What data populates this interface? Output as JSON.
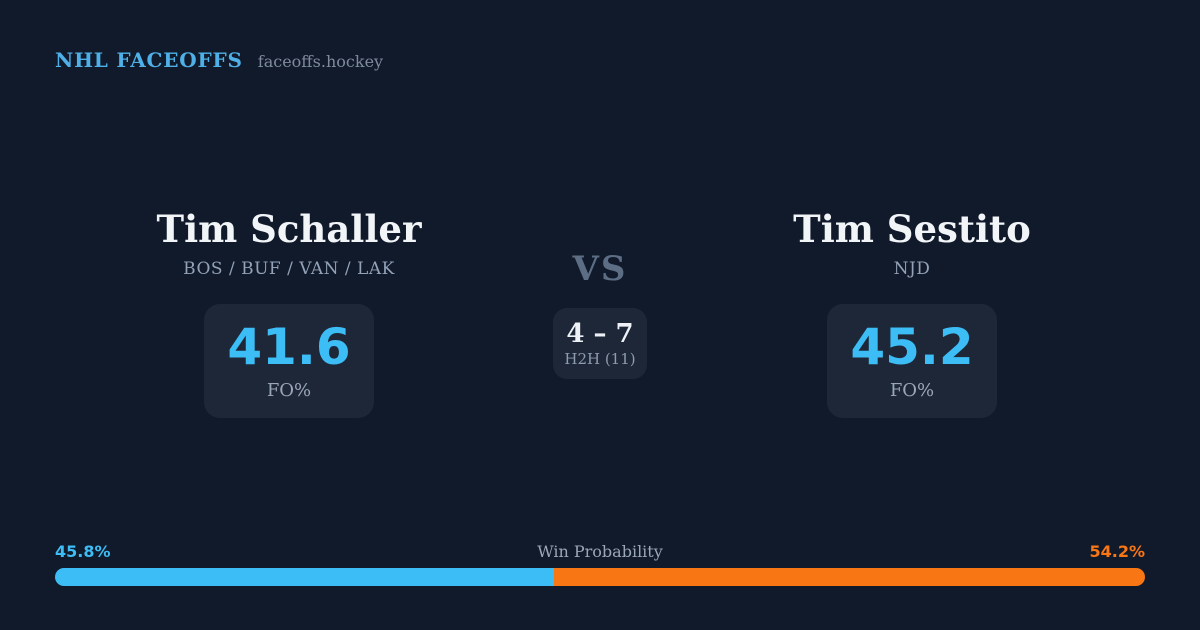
{
  "header": {
    "brand": "NHL FACEOFFS",
    "site": "faceoffs.hockey"
  },
  "matchup": {
    "vs_label": "VS",
    "h2h": {
      "score": "4 – 7",
      "label": "H2H (11)"
    },
    "left": {
      "name": "Tim Schaller",
      "teams": "BOS / BUF / VAN / LAK",
      "fo_value": "41.6",
      "fo_label": "FO%"
    },
    "right": {
      "name": "Tim Sestito",
      "teams": "NJD",
      "fo_value": "45.2",
      "fo_label": "FO%"
    }
  },
  "win_probability": {
    "title": "Win Probability",
    "left_pct_label": "45.8%",
    "right_pct_label": "54.2%",
    "left_value": 45.8,
    "right_value": 54.2,
    "left_color": "#3dbdf5",
    "right_color": "#f97614"
  },
  "colors": {
    "background": "#111a2b",
    "card": "#1d2737",
    "accent_blue": "#3dbdf5",
    "accent_orange": "#f97614",
    "brand_blue": "#4fb0e8",
    "text_primary": "#f2f5f8",
    "text_muted": "#93a2b7"
  }
}
